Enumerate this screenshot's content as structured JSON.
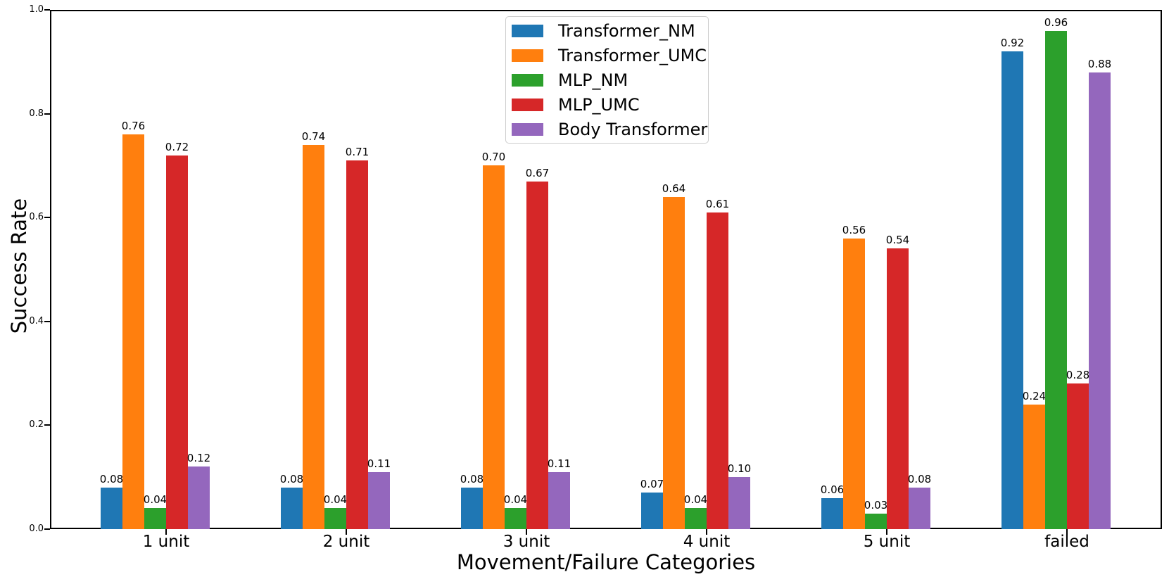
{
  "chart_data": {
    "type": "bar",
    "xlabel": "Movement/Failure Categories",
    "ylabel": "Success Rate",
    "categories": [
      "1 unit",
      "2 unit",
      "3 unit",
      "4 unit",
      "5 unit",
      "failed"
    ],
    "series": [
      {
        "name": "Transformer_NM",
        "color": "#1f77b4",
        "values": [
          0.08,
          0.08,
          0.08,
          0.07,
          0.06,
          0.92
        ]
      },
      {
        "name": "Transformer_UMC",
        "color": "#ff7f0e",
        "values": [
          0.76,
          0.74,
          0.7,
          0.64,
          0.56,
          0.24
        ]
      },
      {
        "name": "MLP_NM",
        "color": "#2ca02c",
        "values": [
          0.04,
          0.04,
          0.04,
          0.04,
          0.03,
          0.96
        ]
      },
      {
        "name": "MLP_UMC",
        "color": "#d62728",
        "values": [
          0.72,
          0.71,
          0.67,
          0.61,
          0.54,
          0.28
        ]
      },
      {
        "name": "Body Transformer",
        "color": "#9467bd",
        "values": [
          0.12,
          0.11,
          0.11,
          0.1,
          0.08,
          0.88
        ]
      }
    ],
    "ylim": [
      0.0,
      1.0
    ],
    "yticks": [
      "0.0",
      "0.2",
      "0.4",
      "0.6",
      "0.8",
      "1.0"
    ],
    "bar_value_labels_decimals": 2,
    "legend_position": "upper center",
    "grid": false,
    "axis_color": "#000000",
    "background_color": "#ffffff"
  }
}
